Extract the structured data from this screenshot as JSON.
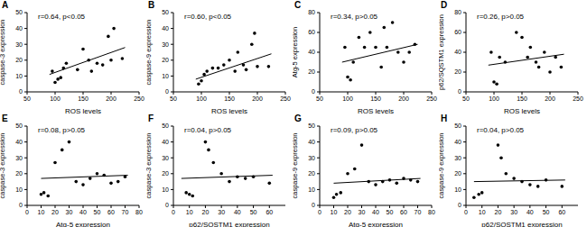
{
  "chart_data": [
    {
      "panel": "A",
      "type": "scatter",
      "annotation": "r=0.64, p<0.05",
      "x_label": "ROS levels",
      "y_label": "caspase-3 expression",
      "color": "#000000",
      "marker": "circle",
      "xlim": [
        50,
        250
      ],
      "xticks": [
        50,
        100,
        150,
        200,
        250
      ],
      "ylim": [
        0,
        50
      ],
      "yticks": [
        0,
        10,
        20,
        30,
        40,
        50
      ],
      "x": [
        95,
        100,
        105,
        110,
        115,
        120,
        140,
        150,
        160,
        165,
        175,
        185,
        195,
        200,
        205,
        220
      ],
      "values": [
        13,
        6,
        8,
        9,
        15,
        18,
        14,
        27,
        20,
        13,
        18,
        17,
        35,
        20,
        40,
        21
      ],
      "trend_line": {
        "x": [
          90,
          225
        ],
        "values": [
          11,
          28
        ]
      }
    },
    {
      "panel": "B",
      "type": "scatter",
      "annotation": "r=0.60, p<0.05",
      "x_label": "ROS levels",
      "y_label": "caspase-9 expression",
      "color": "#000000",
      "marker": "circle",
      "xlim": [
        50,
        250
      ],
      "xticks": [
        50,
        100,
        150,
        200,
        250
      ],
      "ylim": [
        0,
        50
      ],
      "yticks": [
        0,
        10,
        20,
        30,
        40,
        50
      ],
      "x": [
        95,
        100,
        105,
        110,
        120,
        130,
        140,
        150,
        160,
        165,
        175,
        180,
        190,
        195,
        200,
        220
      ],
      "values": [
        5,
        7,
        11,
        13,
        15,
        15,
        17,
        20,
        13,
        25,
        17,
        14,
        30,
        37,
        16,
        16
      ],
      "trend_line": {
        "x": [
          90,
          225
        ],
        "values": [
          8,
          24
        ]
      }
    },
    {
      "panel": "C",
      "type": "scatter",
      "annotation": "r=0.34, p>0.05",
      "x_label": "ROS levels",
      "y_label": "Atg-5 expression",
      "color": "#000000",
      "marker": "circle",
      "xlim": [
        50,
        250
      ],
      "xticks": [
        50,
        100,
        150,
        200,
        250
      ],
      "ylim": [
        0,
        80
      ],
      "yticks": [
        0,
        20,
        40,
        60,
        80
      ],
      "x": [
        95,
        100,
        105,
        110,
        120,
        130,
        140,
        150,
        160,
        165,
        170,
        180,
        190,
        200,
        210,
        220
      ],
      "values": [
        45,
        15,
        12,
        30,
        55,
        45,
        60,
        45,
        25,
        65,
        45,
        70,
        40,
        30,
        40,
        48
      ],
      "trend_line": {
        "x": [
          90,
          225
        ],
        "values": [
          30,
          48
        ]
      }
    },
    {
      "panel": "D",
      "type": "scatter",
      "annotation": "r=0.26, p>0.05",
      "x_label": "ROS levels",
      "y_label": "p62/SQSTM1 expression",
      "color": "#000000",
      "marker": "circle",
      "xlim": [
        50,
        250
      ],
      "xticks": [
        50,
        100,
        150,
        200,
        250
      ],
      "ylim": [
        0,
        80
      ],
      "yticks": [
        0,
        20,
        40,
        60,
        80
      ],
      "x": [
        95,
        100,
        105,
        110,
        120,
        140,
        150,
        160,
        165,
        175,
        180,
        190,
        200,
        210,
        220
      ],
      "values": [
        40,
        10,
        8,
        35,
        30,
        60,
        55,
        35,
        45,
        30,
        25,
        40,
        20,
        35,
        25
      ],
      "trend_line": {
        "x": [
          90,
          225
        ],
        "values": [
          27,
          38
        ]
      }
    },
    {
      "panel": "E",
      "type": "scatter",
      "annotation": "r=0.08, p>0.05",
      "x_label": "Atg-5 expression",
      "y_label": "caspase-3 expression",
      "color": "#000000",
      "marker": "circle",
      "xlim": [
        0,
        80
      ],
      "xticks": [
        0,
        10,
        20,
        30,
        40,
        50,
        60,
        70,
        80
      ],
      "ylim": [
        0,
        50
      ],
      "yticks": [
        0,
        10,
        20,
        30,
        40,
        50
      ],
      "x": [
        10,
        12,
        15,
        20,
        25,
        30,
        35,
        40,
        45,
        50,
        55,
        60,
        65,
        70
      ],
      "values": [
        7,
        8,
        6,
        27,
        35,
        40,
        15,
        13,
        17,
        20,
        19,
        14,
        15,
        18
      ],
      "trend_line": {
        "x": [
          10,
          72
        ],
        "values": [
          17,
          19
        ]
      }
    },
    {
      "panel": "F",
      "type": "scatter",
      "annotation": "r=0.04, p>0.05",
      "x_label": "p62/SQSTM1 expression",
      "y_label": "caspase-3 expression",
      "color": "#000000",
      "marker": "circle",
      "xlim": [
        0,
        70
      ],
      "xticks": [
        0,
        10,
        20,
        30,
        40,
        50,
        60
      ],
      "ylim": [
        0,
        50
      ],
      "yticks": [
        0,
        10,
        20,
        30,
        40,
        50
      ],
      "x": [
        8,
        10,
        12,
        20,
        22,
        25,
        30,
        35,
        40,
        45,
        50,
        60
      ],
      "values": [
        8,
        7,
        6,
        40,
        35,
        27,
        20,
        15,
        18,
        17,
        18,
        14
      ],
      "trend_line": {
        "x": [
          5,
          62
        ],
        "values": [
          17,
          19
        ]
      }
    },
    {
      "panel": "G",
      "type": "scatter",
      "annotation": "r=0.09, p>0.05",
      "x_label": "Atg-5 expression",
      "y_label": "caspase-9 expression",
      "color": "#000000",
      "marker": "circle",
      "xlim": [
        0,
        80
      ],
      "xticks": [
        0,
        10,
        20,
        30,
        40,
        50,
        60,
        70,
        80
      ],
      "ylim": [
        0,
        50
      ],
      "yticks": [
        0,
        10,
        20,
        30,
        40,
        50
      ],
      "x": [
        10,
        12,
        15,
        20,
        25,
        30,
        35,
        40,
        45,
        50,
        55,
        60,
        65,
        70
      ],
      "values": [
        5,
        7,
        8,
        20,
        23,
        38,
        15,
        13,
        15,
        16,
        14,
        17,
        16,
        15
      ],
      "trend_line": {
        "x": [
          10,
          72
        ],
        "values": [
          14,
          17
        ]
      }
    },
    {
      "panel": "H",
      "type": "scatter",
      "annotation": "r=0.04, p>0.05",
      "x_label": "p62/SQSTM1 expression",
      "y_label": "caspase-9 expression",
      "color": "#000000",
      "marker": "circle",
      "xlim": [
        0,
        70
      ],
      "xticks": [
        0,
        10,
        20,
        30,
        40,
        50,
        60
      ],
      "ylim": [
        0,
        50
      ],
      "yticks": [
        0,
        10,
        20,
        30,
        40,
        50
      ],
      "x": [
        5,
        8,
        10,
        20,
        22,
        25,
        30,
        35,
        40,
        45,
        50,
        60
      ],
      "values": [
        5,
        7,
        8,
        38,
        30,
        20,
        17,
        15,
        13,
        12,
        16,
        12
      ],
      "trend_line": {
        "x": [
          5,
          62
        ],
        "values": [
          15,
          16
        ]
      }
    }
  ]
}
